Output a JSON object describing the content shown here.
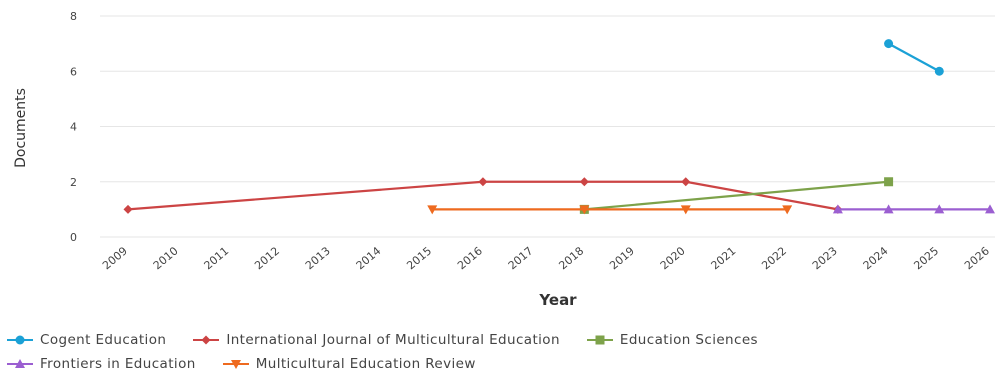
{
  "chart_data": {
    "type": "line",
    "title": "",
    "xlabel": "Year",
    "ylabel": "Documents",
    "categories": [
      "2009",
      "2010",
      "2011",
      "2012",
      "2013",
      "2014",
      "2015",
      "2016",
      "2017",
      "2018",
      "2019",
      "2020",
      "2021",
      "2022",
      "2023",
      "2024",
      "2025",
      "2026"
    ],
    "ylim": [
      0,
      8
    ],
    "yticks": [
      0,
      2,
      4,
      6,
      8
    ],
    "grid": true,
    "legend_position": "bottom",
    "series": [
      {
        "name": "Cogent Education",
        "color": "#1ba1d6",
        "marker": "circle",
        "points": [
          [
            "2024",
            7
          ],
          [
            "2025",
            6
          ]
        ]
      },
      {
        "name": "International Journal of Multicultural Education",
        "color": "#cc4444",
        "marker": "diamond",
        "points": [
          [
            "2009",
            1
          ],
          [
            "2016",
            2
          ],
          [
            "2018",
            2
          ],
          [
            "2020",
            2
          ],
          [
            "2023",
            1
          ]
        ]
      },
      {
        "name": "Education Sciences",
        "color": "#7da24a",
        "marker": "square",
        "points": [
          [
            "2018",
            1
          ],
          [
            "2024",
            2
          ]
        ]
      },
      {
        "name": "Frontiers in Education",
        "color": "#9b5fd1",
        "marker": "triangle-up",
        "points": [
          [
            "2023",
            1
          ],
          [
            "2024",
            1
          ],
          [
            "2025",
            1
          ],
          [
            "2026",
            1
          ]
        ]
      },
      {
        "name": "Multicultural Education Review",
        "color": "#ee6a1f",
        "marker": "triangle-down",
        "points": [
          [
            "2015",
            1
          ],
          [
            "2018",
            1
          ],
          [
            "2020",
            1
          ],
          [
            "2022",
            1
          ]
        ]
      }
    ]
  }
}
